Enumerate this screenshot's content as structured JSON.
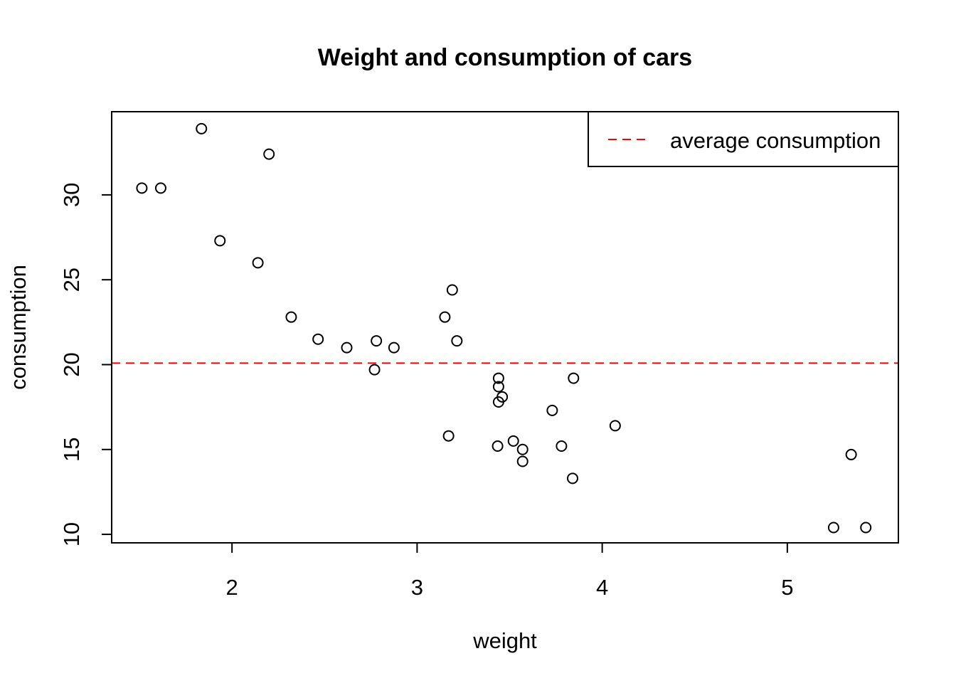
{
  "chart_data": {
    "type": "scatter",
    "title": "Weight and consumption of cars",
    "xlabel": "weight",
    "ylabel": "consumption",
    "xlim": [
      1.35,
      5.6
    ],
    "ylim": [
      9.5,
      34.9
    ],
    "xticks": [
      2,
      3,
      4,
      5
    ],
    "yticks": [
      10,
      15,
      20,
      25,
      30
    ],
    "grid": false,
    "legend_position": "top-right",
    "series": [
      {
        "marker": "open-circle",
        "color": "#000000",
        "points": [
          {
            "x": 2.62,
            "y": 21.0
          },
          {
            "x": 2.875,
            "y": 21.0
          },
          {
            "x": 2.32,
            "y": 22.8
          },
          {
            "x": 3.215,
            "y": 21.4
          },
          {
            "x": 3.44,
            "y": 18.7
          },
          {
            "x": 3.46,
            "y": 18.1
          },
          {
            "x": 3.57,
            "y": 14.3
          },
          {
            "x": 3.19,
            "y": 24.4
          },
          {
            "x": 3.15,
            "y": 22.8
          },
          {
            "x": 3.44,
            "y": 19.2
          },
          {
            "x": 3.44,
            "y": 17.8
          },
          {
            "x": 4.07,
            "y": 16.4
          },
          {
            "x": 3.73,
            "y": 17.3
          },
          {
            "x": 3.78,
            "y": 15.2
          },
          {
            "x": 5.25,
            "y": 10.4
          },
          {
            "x": 5.424,
            "y": 10.4
          },
          {
            "x": 5.345,
            "y": 14.7
          },
          {
            "x": 2.2,
            "y": 32.4
          },
          {
            "x": 1.615,
            "y": 30.4
          },
          {
            "x": 1.835,
            "y": 33.9
          },
          {
            "x": 2.465,
            "y": 21.5
          },
          {
            "x": 3.52,
            "y": 15.5
          },
          {
            "x": 3.435,
            "y": 15.2
          },
          {
            "x": 3.84,
            "y": 13.3
          },
          {
            "x": 3.845,
            "y": 19.2
          },
          {
            "x": 1.935,
            "y": 27.3
          },
          {
            "x": 2.14,
            "y": 26.0
          },
          {
            "x": 1.513,
            "y": 30.4
          },
          {
            "x": 3.17,
            "y": 15.8
          },
          {
            "x": 2.77,
            "y": 19.7
          },
          {
            "x": 3.57,
            "y": 15.0
          },
          {
            "x": 2.78,
            "y": 21.4
          }
        ]
      }
    ],
    "reference_line": {
      "name": "average consumption",
      "orientation": "horizontal",
      "y": 20.09,
      "color": "#ff0000",
      "style": "dashed"
    },
    "legend": [
      {
        "label": "average consumption",
        "color": "#ff0000",
        "style": "dashed"
      }
    ]
  }
}
